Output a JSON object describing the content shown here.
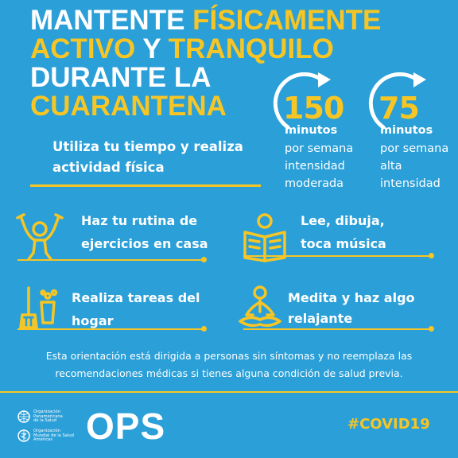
{
  "title": {
    "line1_a": "MANTENTE ",
    "line1_b": "FÍSICAMENTE",
    "line2_a": "ACTIVO",
    "line2_b": " Y ",
    "line2_c": "TRANQUILO",
    "line3": "DURANTE LA",
    "line4": "CUARANTENA"
  },
  "cta": {
    "line1": "Utiliza tu tiempo y realiza",
    "line2": "actividad física"
  },
  "stats": [
    {
      "number": "150",
      "unit": "minutos",
      "desc1": "por semana",
      "desc2": "intensidad",
      "desc3": "moderada"
    },
    {
      "number": "75",
      "unit": "minutos",
      "desc1": "por semana",
      "desc2": "alta",
      "desc3": "intensidad"
    }
  ],
  "activities": [
    {
      "line1": "Haz tu rutina de",
      "line2": "ejercicios en casa",
      "icon": "person-exercise-icon"
    },
    {
      "line1": "Lee, dibuja,",
      "line2": "toca música",
      "icon": "reading-icon"
    },
    {
      "line1": "Realiza tareas del",
      "line2": "hogar",
      "icon": "cleaning-icon"
    },
    {
      "line1": "Medita y haz algo",
      "line2": "relajante",
      "icon": "meditation-icon"
    }
  ],
  "disclaimer": {
    "line1": "Esta orientación está dirigida a personas sin síntomas y no reemplaza las",
    "line2": "recomendaciones médicas si tienes alguna condición de salud previa."
  },
  "footer": {
    "org1": "Organización\nPanamericana\nde la Salud",
    "org2": "Organización\nMundial de la Salud\nAméricas",
    "logo_text": "OPS",
    "hashtag": "#COVID19"
  },
  "colors": {
    "background": "#2a9fd8",
    "accent": "#f7c624",
    "text": "#ffffff"
  }
}
